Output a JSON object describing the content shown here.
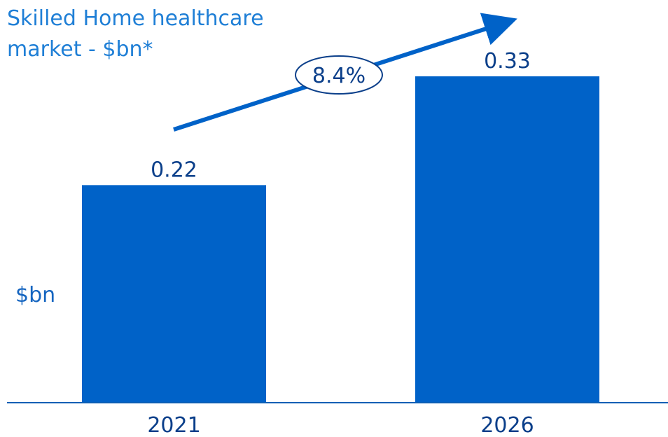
{
  "colors": {
    "bar": "#0062c8",
    "title": "#1f7fd6",
    "text": "#0b3f8a",
    "axis": "#0b5fb5",
    "arrow": "#0062c8"
  },
  "chart_data": {
    "type": "bar",
    "title_lines": [
      "Skilled Home healthcare",
      "market - $bn*"
    ],
    "categories": [
      "2021",
      "2026"
    ],
    "values": [
      0.22,
      0.33
    ],
    "value_labels": [
      "0.22",
      "0.33"
    ],
    "ylabel": "$bn",
    "ylim": [
      0,
      0.33
    ],
    "grid": false,
    "annotation": {
      "text": "8.4%",
      "arrow_direction": "up-right"
    }
  }
}
